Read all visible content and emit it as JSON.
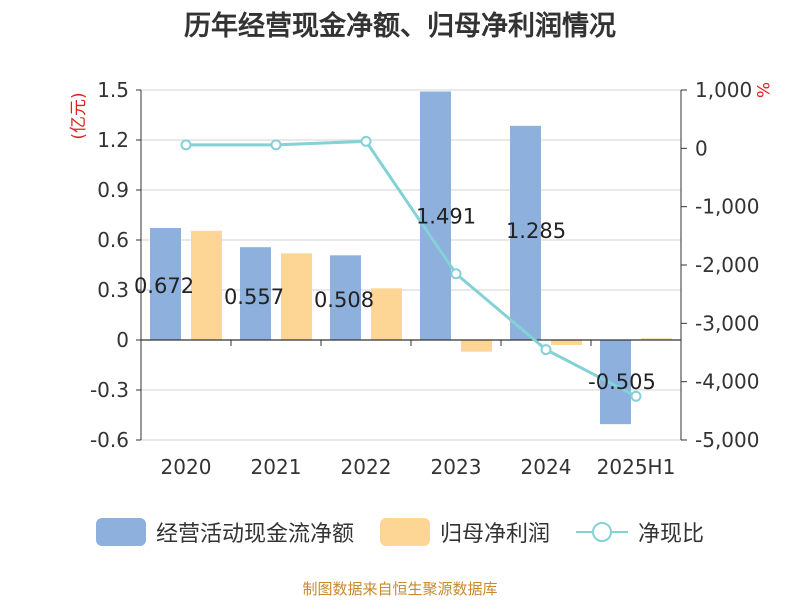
{
  "chart_data": {
    "type": "bar",
    "title": "历年经营现金净额、归母净利润情况",
    "categories": [
      "2020",
      "2021",
      "2022",
      "2023",
      "2024",
      "2025H1"
    ],
    "left_axis": {
      "unit": "(亿元)",
      "min": -0.6,
      "max": 1.5,
      "ticks": [
        1.5,
        1.2,
        0.9,
        0.6,
        0.3,
        0,
        -0.3,
        -0.6
      ],
      "tick_labels": [
        "1.5",
        "1.2",
        "0.9",
        "0.6",
        "0.3",
        "0",
        "-0.3",
        "-0.6"
      ]
    },
    "right_axis": {
      "unit": "%",
      "min": -5000,
      "max": 1000,
      "ticks": [
        1000,
        0,
        -1000,
        -2000,
        -3000,
        -4000,
        -5000
      ],
      "tick_labels": [
        "1,000",
        "0",
        "-1,000",
        "-2,000",
        "-3,000",
        "-4,000",
        "-5,000"
      ]
    },
    "grid": true,
    "legend_position": "bottom",
    "series": [
      {
        "name": "经营活动现金流净额",
        "type": "bar",
        "axis": "left",
        "color": "#8eb0dc",
        "values": [
          0.672,
          0.557,
          0.508,
          1.491,
          1.285,
          -0.505
        ],
        "labels": [
          "0.672",
          "0.557",
          "0.508",
          "1.491",
          "1.285",
          "-0.505"
        ]
      },
      {
        "name": "归母净利润",
        "type": "bar",
        "axis": "left",
        "color": "#fdd595",
        "values": [
          0.655,
          0.52,
          0.31,
          -0.07,
          -0.03,
          0.01
        ]
      },
      {
        "name": "净现比",
        "type": "line",
        "axis": "right",
        "color": "#84d1d6",
        "values": [
          60,
          60,
          120,
          -2150,
          -3450,
          -4250
        ]
      }
    ]
  },
  "footer": {
    "source": "制图数据来自恒生聚源数据库"
  }
}
